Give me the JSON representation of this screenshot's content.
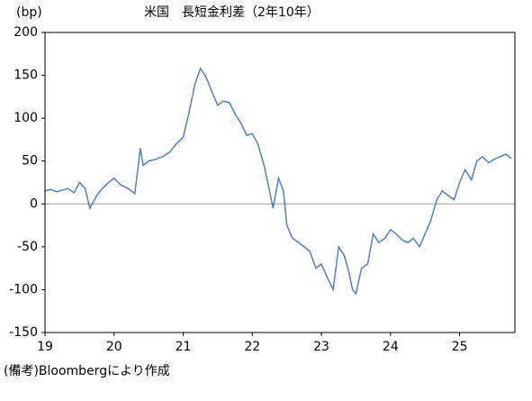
{
  "chart_data": {
    "type": "line",
    "title": "米国　長短金利差（2年10年）",
    "y_label": "(bp)",
    "note": "(備考)Bloombergにより作成",
    "x": [
      19.0,
      19.08,
      19.17,
      19.25,
      19.33,
      19.42,
      19.5,
      19.58,
      19.65,
      19.75,
      19.83,
      19.92,
      20.0,
      20.1,
      20.2,
      20.3,
      20.38,
      20.42,
      20.5,
      20.6,
      20.7,
      20.8,
      20.9,
      21.0,
      21.08,
      21.17,
      21.25,
      21.33,
      21.42,
      21.5,
      21.58,
      21.67,
      21.75,
      21.83,
      21.92,
      22.0,
      22.08,
      22.17,
      22.25,
      22.3,
      22.38,
      22.45,
      22.5,
      22.58,
      22.67,
      22.75,
      22.83,
      22.92,
      23.0,
      23.08,
      23.17,
      23.25,
      23.33,
      23.4,
      23.45,
      23.5,
      23.58,
      23.67,
      23.75,
      23.83,
      23.92,
      24.0,
      24.08,
      24.17,
      24.25,
      24.33,
      24.42,
      24.5,
      24.58,
      24.67,
      24.75,
      24.83,
      24.92,
      25.0,
      25.08,
      25.17,
      25.25,
      25.33,
      25.42,
      25.5,
      25.58,
      25.67,
      25.75
    ],
    "series": [
      {
        "name": "長短金利差",
        "color": "#4f81bd",
        "values": [
          15,
          17,
          14,
          16,
          18,
          13,
          25,
          18,
          -5,
          10,
          18,
          25,
          30,
          22,
          18,
          12,
          65,
          45,
          50,
          52,
          55,
          60,
          70,
          78,
          105,
          140,
          158,
          148,
          130,
          115,
          120,
          118,
          105,
          95,
          80,
          82,
          70,
          45,
          15,
          -5,
          30,
          15,
          -25,
          -40,
          -45,
          -50,
          -55,
          -75,
          -70,
          -85,
          -100,
          -50,
          -60,
          -80,
          -100,
          -105,
          -75,
          -70,
          -35,
          -45,
          -40,
          -30,
          -35,
          -42,
          -45,
          -40,
          -50,
          -35,
          -20,
          5,
          15,
          10,
          5,
          25,
          40,
          28,
          50,
          55,
          48,
          52,
          55,
          58,
          53
        ]
      }
    ],
    "xlim": [
      19.0,
      25.8
    ],
    "xticks": [
      19,
      20,
      21,
      22,
      23,
      24,
      25
    ],
    "ylim": [
      -150,
      200
    ],
    "yticks": [
      200,
      150,
      100,
      50,
      0,
      -50,
      -100,
      -150
    ]
  }
}
